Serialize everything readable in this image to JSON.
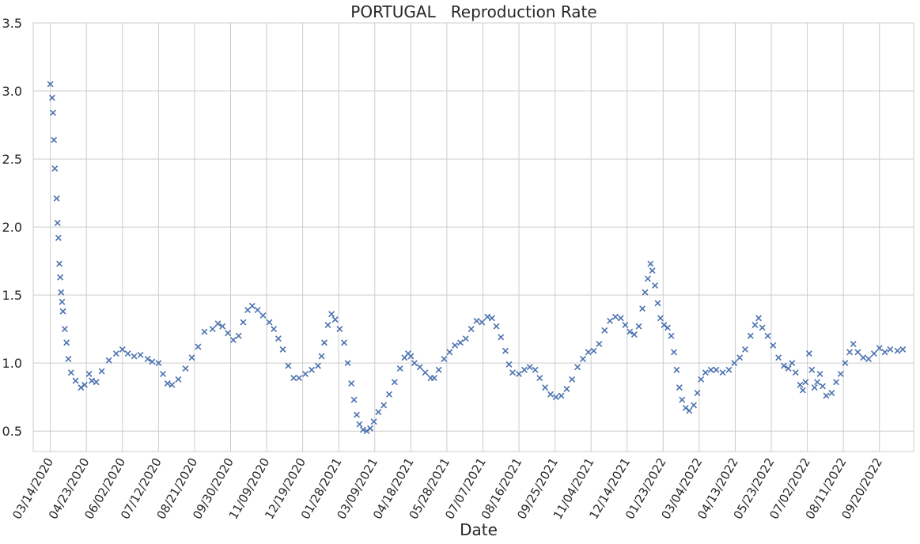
{
  "chart_data": {
    "type": "scatter",
    "title": "PORTUGAL   Reproduction Rate",
    "xlabel": "Date",
    "ylabel": "",
    "ylim": [
      0.35,
      3.5
    ],
    "yticks": [
      0.5,
      1.0,
      1.5,
      2.0,
      2.5,
      3.0,
      3.5
    ],
    "ytick_labels": [
      "0.5",
      "1.0",
      "1.5",
      "2.0",
      "2.5",
      "3.0",
      "3.5"
    ],
    "x_start": "02/24/2020",
    "x_end": "10/28/2022",
    "xticks": [
      "03/14/2020",
      "04/23/2020",
      "06/02/2020",
      "07/12/2020",
      "08/21/2020",
      "09/30/2020",
      "11/09/2020",
      "12/19/2020",
      "01/28/2021",
      "03/09/2021",
      "04/18/2021",
      "05/28/2021",
      "07/07/2021",
      "08/16/2021",
      "09/25/2021",
      "11/04/2021",
      "12/14/2021",
      "01/23/2022",
      "03/04/2022",
      "04/13/2022",
      "05/23/2022",
      "07/02/2022",
      "08/11/2022",
      "09/20/2022"
    ],
    "grid": true,
    "marker": "x",
    "color": "#4c72b0",
    "series": [
      {
        "points": [
          [
            "03/14/2020",
            3.05
          ],
          [
            "03/16/2020",
            2.95
          ],
          [
            "03/17/2020",
            2.84
          ],
          [
            "03/18/2020",
            2.64
          ],
          [
            "03/19/2020",
            2.43
          ],
          [
            "03/21/2020",
            2.21
          ],
          [
            "03/22/2020",
            2.03
          ],
          [
            "03/23/2020",
            1.92
          ],
          [
            "03/24/2020",
            1.73
          ],
          [
            "03/25/2020",
            1.63
          ],
          [
            "03/26/2020",
            1.52
          ],
          [
            "03/27/2020",
            1.45
          ],
          [
            "03/28/2020",
            1.38
          ],
          [
            "03/30/2020",
            1.25
          ],
          [
            "04/01/2020",
            1.15
          ],
          [
            "04/03/2020",
            1.03
          ],
          [
            "04/06/2020",
            0.93
          ],
          [
            "04/11/2020",
            0.87
          ],
          [
            "04/17/2020",
            0.82
          ],
          [
            "04/21/2020",
            0.84
          ],
          [
            "04/26/2020",
            0.92
          ],
          [
            "04/29/2020",
            0.87
          ],
          [
            "05/04/2020",
            0.86
          ],
          [
            "05/10/2020",
            0.94
          ],
          [
            "05/18/2020",
            1.02
          ],
          [
            "05/26/2020",
            1.07
          ],
          [
            "06/02/2020",
            1.1
          ],
          [
            "06/08/2020",
            1.07
          ],
          [
            "06/15/2020",
            1.05
          ],
          [
            "06/22/2020",
            1.06
          ],
          [
            "06/30/2020",
            1.03
          ],
          [
            "07/05/2020",
            1.01
          ],
          [
            "07/12/2020",
            1.0
          ],
          [
            "07/17/2020",
            0.92
          ],
          [
            "07/22/2020",
            0.85
          ],
          [
            "07/27/2020",
            0.84
          ],
          [
            "08/03/2020",
            0.88
          ],
          [
            "08/11/2020",
            0.96
          ],
          [
            "08/18/2020",
            1.04
          ],
          [
            "08/25/2020",
            1.12
          ],
          [
            "09/01/2020",
            1.23
          ],
          [
            "09/10/2020",
            1.25
          ],
          [
            "09/16/2020",
            1.29
          ],
          [
            "09/21/2020",
            1.27
          ],
          [
            "09/27/2020",
            1.22
          ],
          [
            "10/03/2020",
            1.17
          ],
          [
            "10/09/2020",
            1.2
          ],
          [
            "10/14/2020",
            1.3
          ],
          [
            "10/19/2020",
            1.39
          ],
          [
            "10/24/2020",
            1.42
          ],
          [
            "10/30/2020",
            1.39
          ],
          [
            "11/05/2020",
            1.35
          ],
          [
            "11/12/2020",
            1.3
          ],
          [
            "11/17/2020",
            1.25
          ],
          [
            "11/22/2020",
            1.18
          ],
          [
            "11/27/2020",
            1.1
          ],
          [
            "12/03/2020",
            0.98
          ],
          [
            "12/09/2020",
            0.89
          ],
          [
            "12/15/2020",
            0.89
          ],
          [
            "12/22/2020",
            0.92
          ],
          [
            "12/29/2020",
            0.95
          ],
          [
            "01/05/2021",
            0.98
          ],
          [
            "01/09/2021",
            1.05
          ],
          [
            "01/12/2021",
            1.15
          ],
          [
            "01/16/2021",
            1.28
          ],
          [
            "01/20/2021",
            1.36
          ],
          [
            "01/24/2021",
            1.32
          ],
          [
            "01/29/2021",
            1.25
          ],
          [
            "02/03/2021",
            1.15
          ],
          [
            "02/07/2021",
            1.0
          ],
          [
            "02/11/2021",
            0.85
          ],
          [
            "02/14/2021",
            0.73
          ],
          [
            "02/17/2021",
            0.62
          ],
          [
            "02/20/2021",
            0.55
          ],
          [
            "02/24/2021",
            0.51
          ],
          [
            "02/28/2021",
            0.5
          ],
          [
            "03/04/2021",
            0.52
          ],
          [
            "03/08/2021",
            0.57
          ],
          [
            "03/13/2021",
            0.64
          ],
          [
            "03/19/2021",
            0.69
          ],
          [
            "03/25/2021",
            0.77
          ],
          [
            "03/31/2021",
            0.86
          ],
          [
            "04/06/2021",
            0.96
          ],
          [
            "04/11/2021",
            1.04
          ],
          [
            "04/15/2021",
            1.07
          ],
          [
            "04/18/2021",
            1.05
          ],
          [
            "04/22/2021",
            1.0
          ],
          [
            "04/28/2021",
            0.97
          ],
          [
            "05/04/2021",
            0.93
          ],
          [
            "05/10/2021",
            0.89
          ],
          [
            "05/14/2021",
            0.89
          ],
          [
            "05/19/2021",
            0.95
          ],
          [
            "05/25/2021",
            1.03
          ],
          [
            "05/31/2021",
            1.08
          ],
          [
            "06/06/2021",
            1.13
          ],
          [
            "06/12/2021",
            1.15
          ],
          [
            "06/18/2021",
            1.18
          ],
          [
            "06/24/2021",
            1.25
          ],
          [
            "06/30/2021",
            1.31
          ],
          [
            "07/06/2021",
            1.3
          ],
          [
            "07/12/2021",
            1.34
          ],
          [
            "07/17/2021",
            1.33
          ],
          [
            "07/22/2021",
            1.27
          ],
          [
            "07/27/2021",
            1.19
          ],
          [
            "08/01/2021",
            1.09
          ],
          [
            "08/05/2021",
            0.99
          ],
          [
            "08/09/2021",
            0.93
          ],
          [
            "08/16/2021",
            0.92
          ],
          [
            "08/22/2021",
            0.95
          ],
          [
            "08/28/2021",
            0.97
          ],
          [
            "09/03/2021",
            0.95
          ],
          [
            "09/08/2021",
            0.89
          ],
          [
            "09/14/2021",
            0.82
          ],
          [
            "09/20/2021",
            0.77
          ],
          [
            "09/26/2021",
            0.75
          ],
          [
            "10/02/2021",
            0.76
          ],
          [
            "10/08/2021",
            0.81
          ],
          [
            "10/14/2021",
            0.88
          ],
          [
            "10/20/2021",
            0.97
          ],
          [
            "10/26/2021",
            1.03
          ],
          [
            "11/01/2021",
            1.08
          ],
          [
            "11/07/2021",
            1.09
          ],
          [
            "11/13/2021",
            1.14
          ],
          [
            "11/19/2021",
            1.24
          ],
          [
            "11/25/2021",
            1.31
          ],
          [
            "12/01/2021",
            1.34
          ],
          [
            "12/07/2021",
            1.33
          ],
          [
            "12/12/2021",
            1.28
          ],
          [
            "12/17/2021",
            1.23
          ],
          [
            "12/22/2021",
            1.21
          ],
          [
            "12/27/2021",
            1.27
          ],
          [
            "12/31/2021",
            1.4
          ],
          [
            "01/03/2022",
            1.52
          ],
          [
            "01/06/2022",
            1.62
          ],
          [
            "01/09/2022",
            1.73
          ],
          [
            "01/11/2022",
            1.68
          ],
          [
            "01/14/2022",
            1.57
          ],
          [
            "01/17/2022",
            1.44
          ],
          [
            "01/20/2022",
            1.33
          ],
          [
            "01/24/2022",
            1.28
          ],
          [
            "01/28/2022",
            1.26
          ],
          [
            "02/01/2022",
            1.2
          ],
          [
            "02/04/2022",
            1.08
          ],
          [
            "02/07/2022",
            0.95
          ],
          [
            "02/10/2022",
            0.82
          ],
          [
            "02/13/2022",
            0.73
          ],
          [
            "02/17/2022",
            0.67
          ],
          [
            "02/21/2022",
            0.65
          ],
          [
            "02/26/2022",
            0.69
          ],
          [
            "03/02/2022",
            0.78
          ],
          [
            "03/06/2022",
            0.88
          ],
          [
            "03/11/2022",
            0.93
          ],
          [
            "03/17/2022",
            0.95
          ],
          [
            "03/23/2022",
            0.95
          ],
          [
            "03/30/2022",
            0.93
          ],
          [
            "04/06/2022",
            0.95
          ],
          [
            "04/12/2022",
            1.0
          ],
          [
            "04/18/2022",
            1.04
          ],
          [
            "04/24/2022",
            1.1
          ],
          [
            "04/30/2022",
            1.2
          ],
          [
            "05/05/2022",
            1.28
          ],
          [
            "05/09/2022",
            1.33
          ],
          [
            "05/13/2022",
            1.26
          ],
          [
            "05/19/2022",
            1.2
          ],
          [
            "05/25/2022",
            1.13
          ],
          [
            "05/31/2022",
            1.04
          ],
          [
            "06/06/2022",
            0.98
          ],
          [
            "06/11/2022",
            0.96
          ],
          [
            "06/15/2022",
            1.0
          ],
          [
            "06/19/2022",
            0.93
          ],
          [
            "06/24/2022",
            0.84
          ],
          [
            "06/27/2022",
            0.8
          ],
          [
            "06/30/2022",
            0.86
          ],
          [
            "07/04/2022",
            1.07
          ],
          [
            "07/07/2022",
            0.95
          ],
          [
            "07/10/2022",
            0.82
          ],
          [
            "07/13/2022",
            0.86
          ],
          [
            "07/16/2022",
            0.92
          ],
          [
            "07/19/2022",
            0.83
          ],
          [
            "07/23/2022",
            0.76
          ],
          [
            "07/29/2022",
            0.78
          ],
          [
            "08/03/2022",
            0.86
          ],
          [
            "08/08/2022",
            0.92
          ],
          [
            "08/13/2022",
            1.0
          ],
          [
            "08/18/2022",
            1.08
          ],
          [
            "08/22/2022",
            1.14
          ],
          [
            "08/27/2022",
            1.08
          ],
          [
            "09/02/2022",
            1.04
          ],
          [
            "09/08/2022",
            1.03
          ],
          [
            "09/14/2022",
            1.07
          ],
          [
            "09/20/2022",
            1.11
          ],
          [
            "09/26/2022",
            1.08
          ],
          [
            "10/02/2022",
            1.1
          ],
          [
            "10/10/2022",
            1.09
          ],
          [
            "10/16/2022",
            1.1
          ]
        ]
      }
    ]
  }
}
